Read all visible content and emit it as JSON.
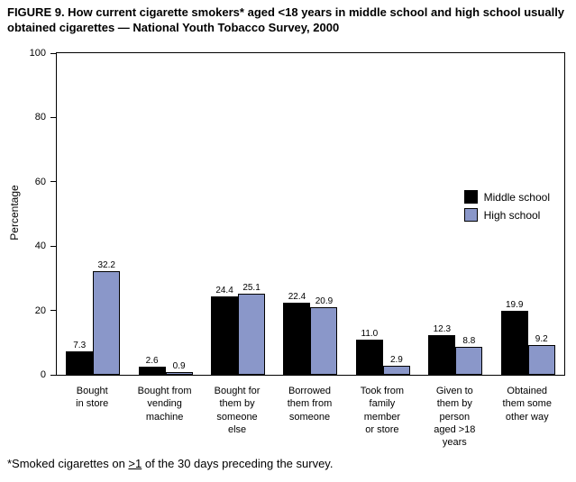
{
  "title": "FIGURE 9. How current cigarette smokers* aged <18 years in middle school and high school usually obtained cigarettes — National Youth Tobacco Survey, 2000",
  "footnote": {
    "pre": "*Smoked cigarettes on ",
    "underlined": ">1",
    "post": " of the 30 days preceding the survey."
  },
  "chart_data": {
    "type": "bar",
    "title": "How current cigarette smokers aged <18 years in middle school and high school usually obtained cigarettes — National Youth Tobacco Survey, 2000",
    "xlabel": "",
    "ylabel": "Percentage",
    "ylim": [
      0,
      100
    ],
    "yticks": [
      0,
      20,
      40,
      60,
      80,
      100
    ],
    "grid": false,
    "legend_position": "inside-right",
    "categories": [
      "Bought in store",
      "Bought from vending machine",
      "Bought for them by someone else",
      "Borrowed them from someone",
      "Took from family member or store",
      "Given to them by person aged >18 years",
      "Obtained them some other way"
    ],
    "category_lines": [
      [
        "Bought",
        "in store"
      ],
      [
        "Bought from",
        "vending",
        "machine"
      ],
      [
        "Bought for",
        "them by",
        "someone",
        "else"
      ],
      [
        "Borrowed",
        "them from",
        "someone"
      ],
      [
        "Took from",
        "family",
        "member",
        "or store"
      ],
      [
        "Given to",
        "them by",
        "person",
        "aged >18",
        "years"
      ],
      [
        "Obtained",
        "them some",
        "other way"
      ]
    ],
    "series": [
      {
        "name": "Middle school",
        "color": "#000000",
        "values": [
          7.3,
          2.6,
          24.4,
          22.4,
          11.0,
          12.3,
          19.9
        ]
      },
      {
        "name": "High school",
        "color": "#8a97c9",
        "values": [
          32.2,
          0.9,
          25.1,
          20.9,
          2.9,
          8.8,
          9.2
        ]
      }
    ]
  }
}
